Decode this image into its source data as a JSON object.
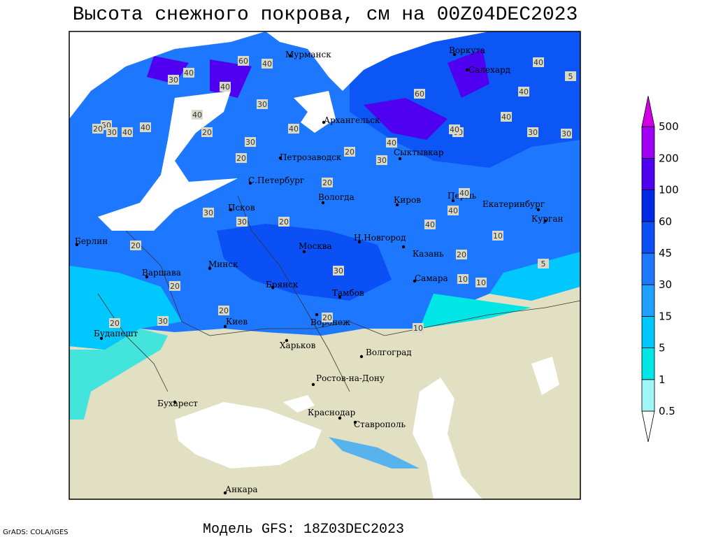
{
  "header": {
    "title": "Высота снежного покрова, см на 00Z04DEC2023"
  },
  "footer": {
    "model": "Модель GFS: 18Z03DEC2023",
    "credit": "GrADS: COLA/IGES"
  },
  "colorbar": {
    "levels": [
      0.5,
      1,
      5,
      15,
      30,
      45,
      60,
      100,
      200,
      500
    ],
    "colors": [
      "#ffffff",
      "#a0f5f5",
      "#00e6e6",
      "#00c8ff",
      "#1ea0ff",
      "#1e78ff",
      "#0a50f5",
      "#0028e6",
      "#5000f0",
      "#a000f5",
      "#d200e6"
    ]
  },
  "cities": [
    "Мурманск",
    "Воркута",
    "Салехард",
    "Архангельск",
    "Петрозаводск",
    "Сыктывкар",
    "С.Петербург",
    "Вологда",
    "Киров",
    "Пермь",
    "Екатеринбург",
    "Курган",
    "Псков",
    "Берлин",
    "Н.Новгород",
    "Казань",
    "Москва",
    "Минск",
    "Варшава",
    "Самара",
    "Брянск",
    "Тамбов",
    "Киев",
    "Воронеж",
    "Будапешт",
    "Харьков",
    "Волгоград",
    "Ростов-на-Дону",
    "Бухарест",
    "Краснодар",
    "Ставрополь",
    "Анкара"
  ],
  "contour_labels": [
    40,
    60,
    40,
    30,
    60,
    40,
    30,
    40,
    20,
    50,
    40,
    30,
    40,
    60,
    40,
    40,
    20,
    30,
    40,
    40,
    30,
    20,
    30,
    20,
    20,
    40,
    40,
    30,
    30,
    40,
    20,
    30,
    10,
    40,
    20,
    10,
    5,
    20,
    30,
    20,
    10,
    10,
    20,
    5,
    30,
    20,
    20,
    40,
    30
  ]
}
